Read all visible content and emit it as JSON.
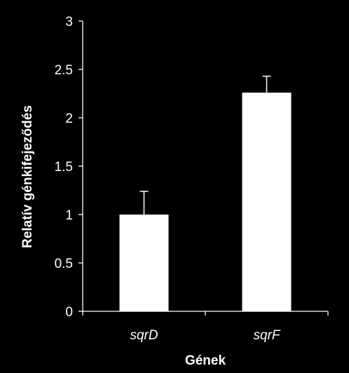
{
  "chart_data": {
    "type": "bar",
    "categories": [
      "sqrD",
      "sqrF"
    ],
    "values": [
      1.0,
      2.26
    ],
    "error_bars": [
      0.24,
      0.17
    ],
    "xlabel": "Gének",
    "ylabel": "Relatív génkifejeződés",
    "ylim": [
      0,
      3
    ],
    "yticks": [
      "0",
      "0.5",
      "1",
      "1.5",
      "2",
      "2.5",
      "3"
    ],
    "grid": false,
    "legend": "none",
    "colors": {
      "background": "#000000",
      "bar": "#ffffff",
      "axis": "#ffffff",
      "text": "#ffffff"
    }
  }
}
